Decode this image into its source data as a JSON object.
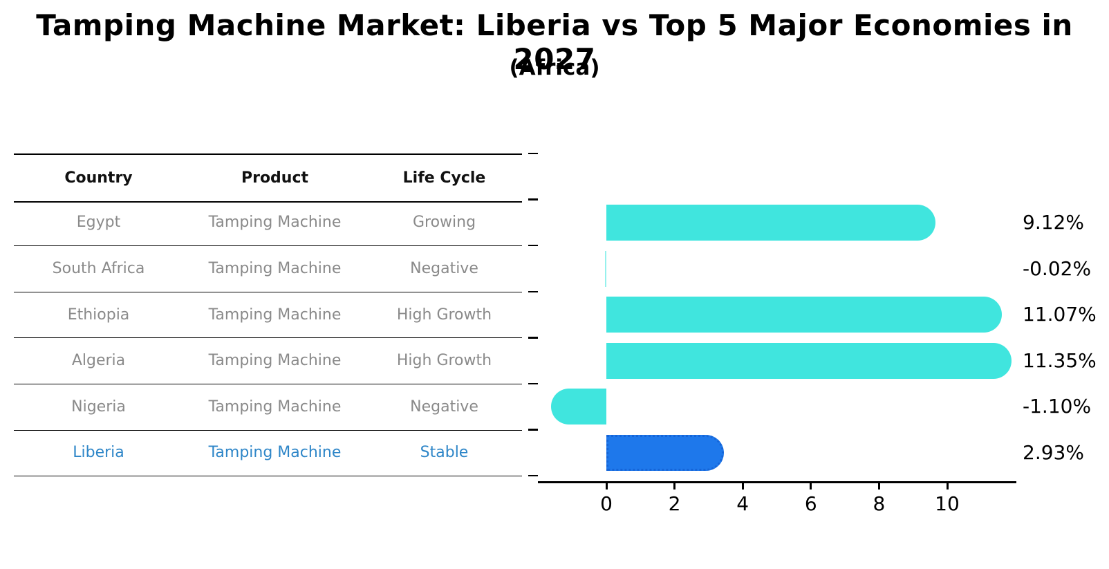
{
  "title": "Tamping Machine Market: Liberia vs Top 5 Major Economies in 2027",
  "subtitle": "(Africa)",
  "table": {
    "headers": [
      "Country",
      "Product",
      "Life Cycle"
    ],
    "rows": [
      {
        "country": "Egypt",
        "product": "Tamping Machine",
        "life_cycle": "Growing",
        "highlight": false
      },
      {
        "country": "South Africa",
        "product": "Tamping Machine",
        "life_cycle": "Negative",
        "highlight": false
      },
      {
        "country": "Ethiopia",
        "product": "Tamping Machine",
        "life_cycle": "High Growth",
        "highlight": false
      },
      {
        "country": "Algeria",
        "product": "Tamping Machine",
        "life_cycle": "High Growth",
        "highlight": false
      },
      {
        "country": "Nigeria",
        "product": "Tamping Machine",
        "life_cycle": "Negative",
        "highlight": false
      },
      {
        "country": "Liberia",
        "product": "Tamping Machine",
        "life_cycle": "Stable",
        "highlight": true
      }
    ]
  },
  "chart_data": {
    "type": "bar",
    "orientation": "horizontal",
    "title": "Tamping Machine Market: Liberia vs Top 5 Major Economies in 2027",
    "subtitle": "(Africa)",
    "categories": [
      "Egypt",
      "South Africa",
      "Ethiopia",
      "Algeria",
      "Nigeria",
      "Liberia"
    ],
    "values": [
      9.12,
      -0.02,
      11.07,
      11.35,
      -1.1,
      2.93
    ],
    "value_labels": [
      "9.12%",
      "-0.02%",
      "11.07%",
      "11.35%",
      "-1.10%",
      "2.93%"
    ],
    "xlabel": "",
    "ylabel": "",
    "xlim": [
      -2,
      12.05
    ],
    "x_ticks": [
      0,
      2,
      4,
      6,
      8,
      10
    ],
    "grid": false,
    "legend": false,
    "highlight_category": "Liberia",
    "bar_color_default": "#40E5DE",
    "bar_color_highlight": "#1E78EB",
    "highlight_border_style": "dotted"
  },
  "colors": {
    "background": "#FFFFFF",
    "title_text": "#000000",
    "table_header_text": "#111111",
    "table_row_text": "#8A8A8A",
    "highlight_row_text": "#2E86C8",
    "axis_line": "#000000",
    "tick_label": "#000000",
    "value_label": "#000000",
    "bar_default": "#40E5DE",
    "bar_highlight": "#1E78EB",
    "bar_highlight_border": "#1565D8"
  }
}
